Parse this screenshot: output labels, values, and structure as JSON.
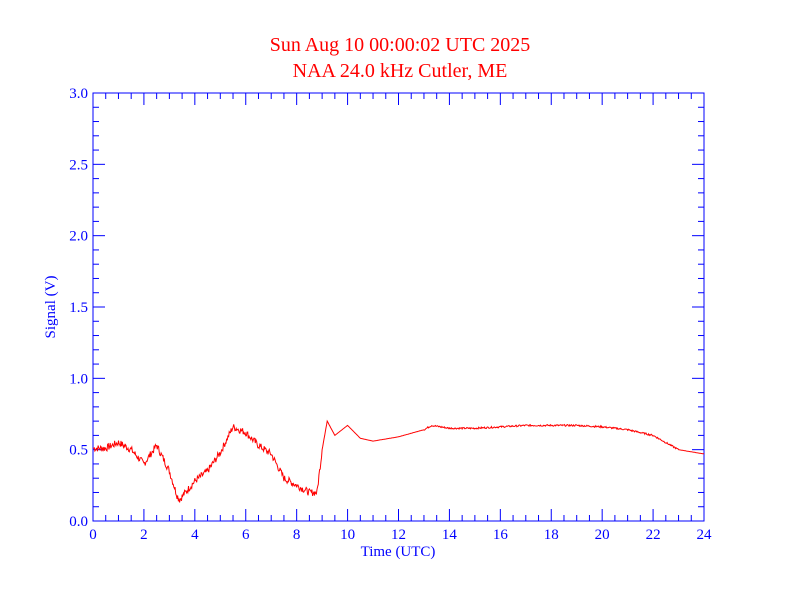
{
  "chart_data": {
    "type": "line",
    "title": "Sun Aug 10 00:00:02 UTC 2025",
    "subtitle": "NAA 24.0 kHz Cutler, ME",
    "xlabel": "Time (UTC)",
    "ylabel": "Signal (V)",
    "xlim": [
      0,
      24
    ],
    "ylim": [
      0,
      3.0
    ],
    "xticks": [
      "0",
      "2",
      "4",
      "6",
      "8",
      "10",
      "12",
      "14",
      "16",
      "18",
      "20",
      "22",
      "24"
    ],
    "yticks": [
      "0.0",
      "0.5",
      "1.0",
      "1.5",
      "2.0",
      "2.5",
      "3.0"
    ],
    "grid": false,
    "colors": {
      "title": "#ff0000",
      "axes": "#0000ff",
      "line": "#ff0000"
    },
    "series": [
      {
        "x": [
          0,
          0.5,
          1.0,
          1.5,
          2.0,
          2.5,
          3.0,
          3.3,
          3.4,
          4.0,
          4.5,
          5.0,
          5.5,
          6.0,
          6.5,
          7.0,
          7.5,
          8.0,
          8.5,
          8.8,
          9.0,
          9.2,
          9.5,
          10.0,
          10.5,
          11.0,
          12.0,
          13.0,
          13.3,
          14.0,
          15.0,
          16.0,
          17.0,
          18.0,
          19.0,
          20.0,
          21.0,
          22.0,
          23.0,
          24.0
        ],
        "y": [
          0.51,
          0.51,
          0.55,
          0.5,
          0.4,
          0.53,
          0.35,
          0.18,
          0.15,
          0.28,
          0.35,
          0.48,
          0.66,
          0.62,
          0.53,
          0.47,
          0.3,
          0.25,
          0.2,
          0.2,
          0.5,
          0.7,
          0.6,
          0.67,
          0.58,
          0.56,
          0.59,
          0.64,
          0.67,
          0.65,
          0.65,
          0.66,
          0.67,
          0.67,
          0.67,
          0.66,
          0.64,
          0.6,
          0.5,
          0.47
        ]
      }
    ]
  }
}
